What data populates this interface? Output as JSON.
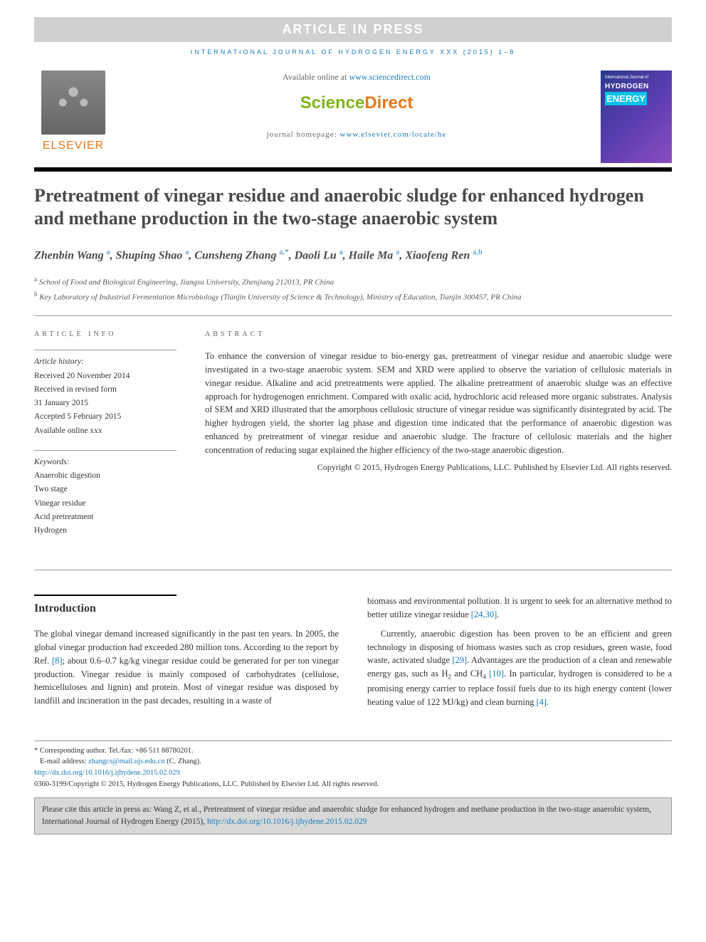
{
  "banner": "ARTICLE IN PRESS",
  "journalHeader": "INTERNATIONAL JOURNAL OF HYDROGEN ENERGY XXX (2015) 1–8",
  "elsevier": "ELSEVIER",
  "available": {
    "prefix": "Available online at ",
    "url": "www.sciencedirect.com"
  },
  "sdLogo": {
    "a": "Science",
    "b": "Direct"
  },
  "homepage": {
    "prefix": "journal homepage: ",
    "url": "www.elsevier.com/locate/he"
  },
  "cover": {
    "line1": "International Journal of",
    "line2": "HYDROGEN",
    "line3": "ENERGY"
  },
  "title": "Pretreatment of vinegar residue and anaerobic sludge for enhanced hydrogen and methane production in the two-stage anaerobic system",
  "authors": [
    {
      "name": "Zhenbin Wang",
      "aff": "a"
    },
    {
      "name": "Shuping Shao",
      "aff": "a"
    },
    {
      "name": "Cunsheng Zhang",
      "aff": "a",
      "corr": "*"
    },
    {
      "name": "Daoli Lu",
      "aff": "a"
    },
    {
      "name": "Haile Ma",
      "aff": "a"
    },
    {
      "name": "Xiaofeng Ren",
      "aff": "a,b"
    }
  ],
  "affiliations": [
    {
      "sup": "a",
      "text": "School of Food and Biological Engineering, Jiangsu University, Zhenjiang 212013, PR China"
    },
    {
      "sup": "b",
      "text": "Key Laboratory of Industrial Fermentation Microbiology (Tianjin University of Science & Technology), Ministry of Education, Tianjin 300457, PR China"
    }
  ],
  "articleInfo": {
    "label": "ARTICLE INFO",
    "historyLabel": "Article history:",
    "history": [
      "Received 20 November 2014",
      "Received in revised form",
      "31 January 2015",
      "Accepted 5 February 2015",
      "Available online xxx"
    ],
    "kwLabel": "Keywords:",
    "keywords": [
      "Anaerobic digestion",
      "Two stage",
      "Vinegar residue",
      "Acid pretreatment",
      "Hydrogen"
    ]
  },
  "abstract": {
    "label": "ABSTRACT",
    "text": "To enhance the conversion of vinegar residue to bio-energy gas, pretreatment of vinegar residue and anaerobic sludge were investigated in a two-stage anaerobic system. SEM and XRD were applied to observe the variation of cellulosic materials in vinegar residue. Alkaline and acid pretreatments were applied. The alkaline pretreatment of anaerobic sludge was an effective approach for hydrogenogen enrichment. Compared with oxalic acid, hydrochloric acid released more organic substrates. Analysis of SEM and XRD illustrated that the amorphous cellulosic structure of vinegar residue was significantly disintegrated by acid. The higher hydrogen yield, the shorter lag phase and digestion time indicated that the performance of anaerobic digestion was enhanced by pretreatment of vinegar residue and anaerobic sludge. The fracture of cellulosic materials and the higher concentration of reducing sugar explained the higher efficiency of the two-stage anaerobic digestion.",
    "copyright": "Copyright © 2015, Hydrogen Energy Publications, LLC. Published by Elsevier Ltd. All rights reserved."
  },
  "intro": {
    "heading": "Introduction",
    "p1a": "The global vinegar demand increased significantly in the past ten years. In 2005, the global vinegar production had exceeded 280 million tons. According to the report by Ref. ",
    "p1ref": "[8]",
    "p1b": "; about 0.6–0.7 kg/kg vinegar residue could be generated for per ton vinegar production. Vinegar residue is mainly composed of carbohydrates (cellulose, hemicelluloses and lignin) and protein. Most of vinegar residue was disposed by landfill and incineration in the past decades, resulting in a waste of",
    "p2a": "biomass and environmental pollution. It is urgent to seek for an alternative method to better utilize vinegar residue ",
    "p2ref": "[24,30]",
    "p2b": ".",
    "p3a": "Currently, anaerobic digestion has been proven to be an efficient and green technology in disposing of biomass wastes such as crop residues, green waste, food waste, activated sludge ",
    "p3ref1": "[29]",
    "p3c": ". Advantages are the production of a clean and renewable energy gas, such as H",
    "p3d": " and CH",
    "p3e": " ",
    "p3ref2": "[10]",
    "p3f": ". In particular, hydrogen is considered to be a promising energy carrier to replace fossil fuels due to its high energy content (lower heating value of 122 MJ/kg) and clean burning ",
    "p3ref3": "[4]",
    "p3g": "."
  },
  "footnotes": {
    "corr": "* Corresponding author. Tel./fax: +86 511 88780201.",
    "emailLabel": "E-mail address: ",
    "email": "zhangcs@mail.ujs.edu.cn",
    "emailSuffix": " (C. Zhang).",
    "doi": "http://dx.doi.org/10.1016/j.ijhydene.2015.02.029",
    "issn": "0360-3199/Copyright © 2015, Hydrogen Energy Publications, LLC. Published by Elsevier Ltd. All rights reserved."
  },
  "citeBox": {
    "text": "Please cite this article in press as: Wang Z, et al., Pretreatment of vinegar residue and anaerobic sludge for enhanced hydrogen and methane production in the two-stage anaerobic system, International Journal of Hydrogen Energy (2015), ",
    "doi": "http://dx.doi.org/10.1016/j.ijhydene.2015.02.029"
  }
}
